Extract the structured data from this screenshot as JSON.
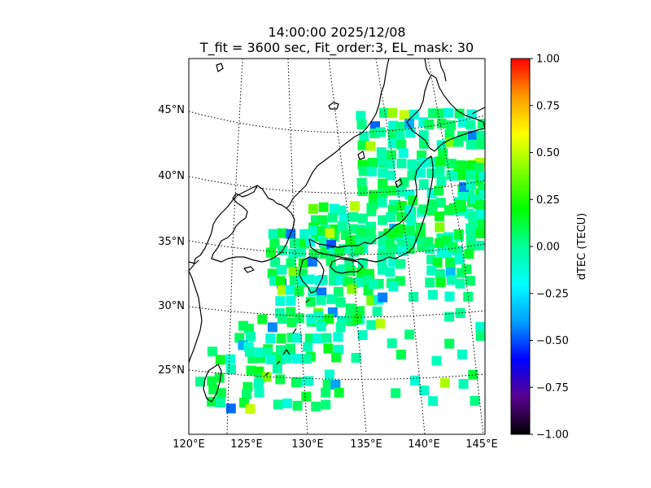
{
  "title": {
    "line1": "14:00:00 2025/12/08",
    "line2": "T_fit = 3600 sec, Fit_order:3, EL_mask: 30"
  },
  "map": {
    "lon_labels": [
      "120°E",
      "125°E",
      "130°E",
      "135°E",
      "140°E",
      "145°E"
    ],
    "lat_labels": [
      "45°N",
      "40°N",
      "35°N",
      "30°N",
      "25°N"
    ],
    "lon_range": [
      120,
      145
    ],
    "lat_range": [
      20,
      49
    ],
    "gridlines": "dotted"
  },
  "colorbar": {
    "label": "dTEC (TECU)",
    "range": [
      -1.0,
      1.0
    ],
    "ticks": [
      "1.00",
      "0.75",
      "0.50",
      "0.25",
      "0.00",
      "−0.25",
      "−0.50",
      "−0.75",
      "−1.00"
    ],
    "tick_values": [
      1.0,
      0.75,
      0.5,
      0.25,
      0.0,
      -0.25,
      -0.5,
      -0.75,
      -1.0
    ],
    "colormap": "nipy_spectral",
    "stops": [
      "#000000",
      "#5a0090",
      "#0000ff",
      "#00a0ff",
      "#00ffff",
      "#00ff99",
      "#00ff00",
      "#80ff00",
      "#ffff00",
      "#ff9900",
      "#ff0000"
    ]
  }
}
